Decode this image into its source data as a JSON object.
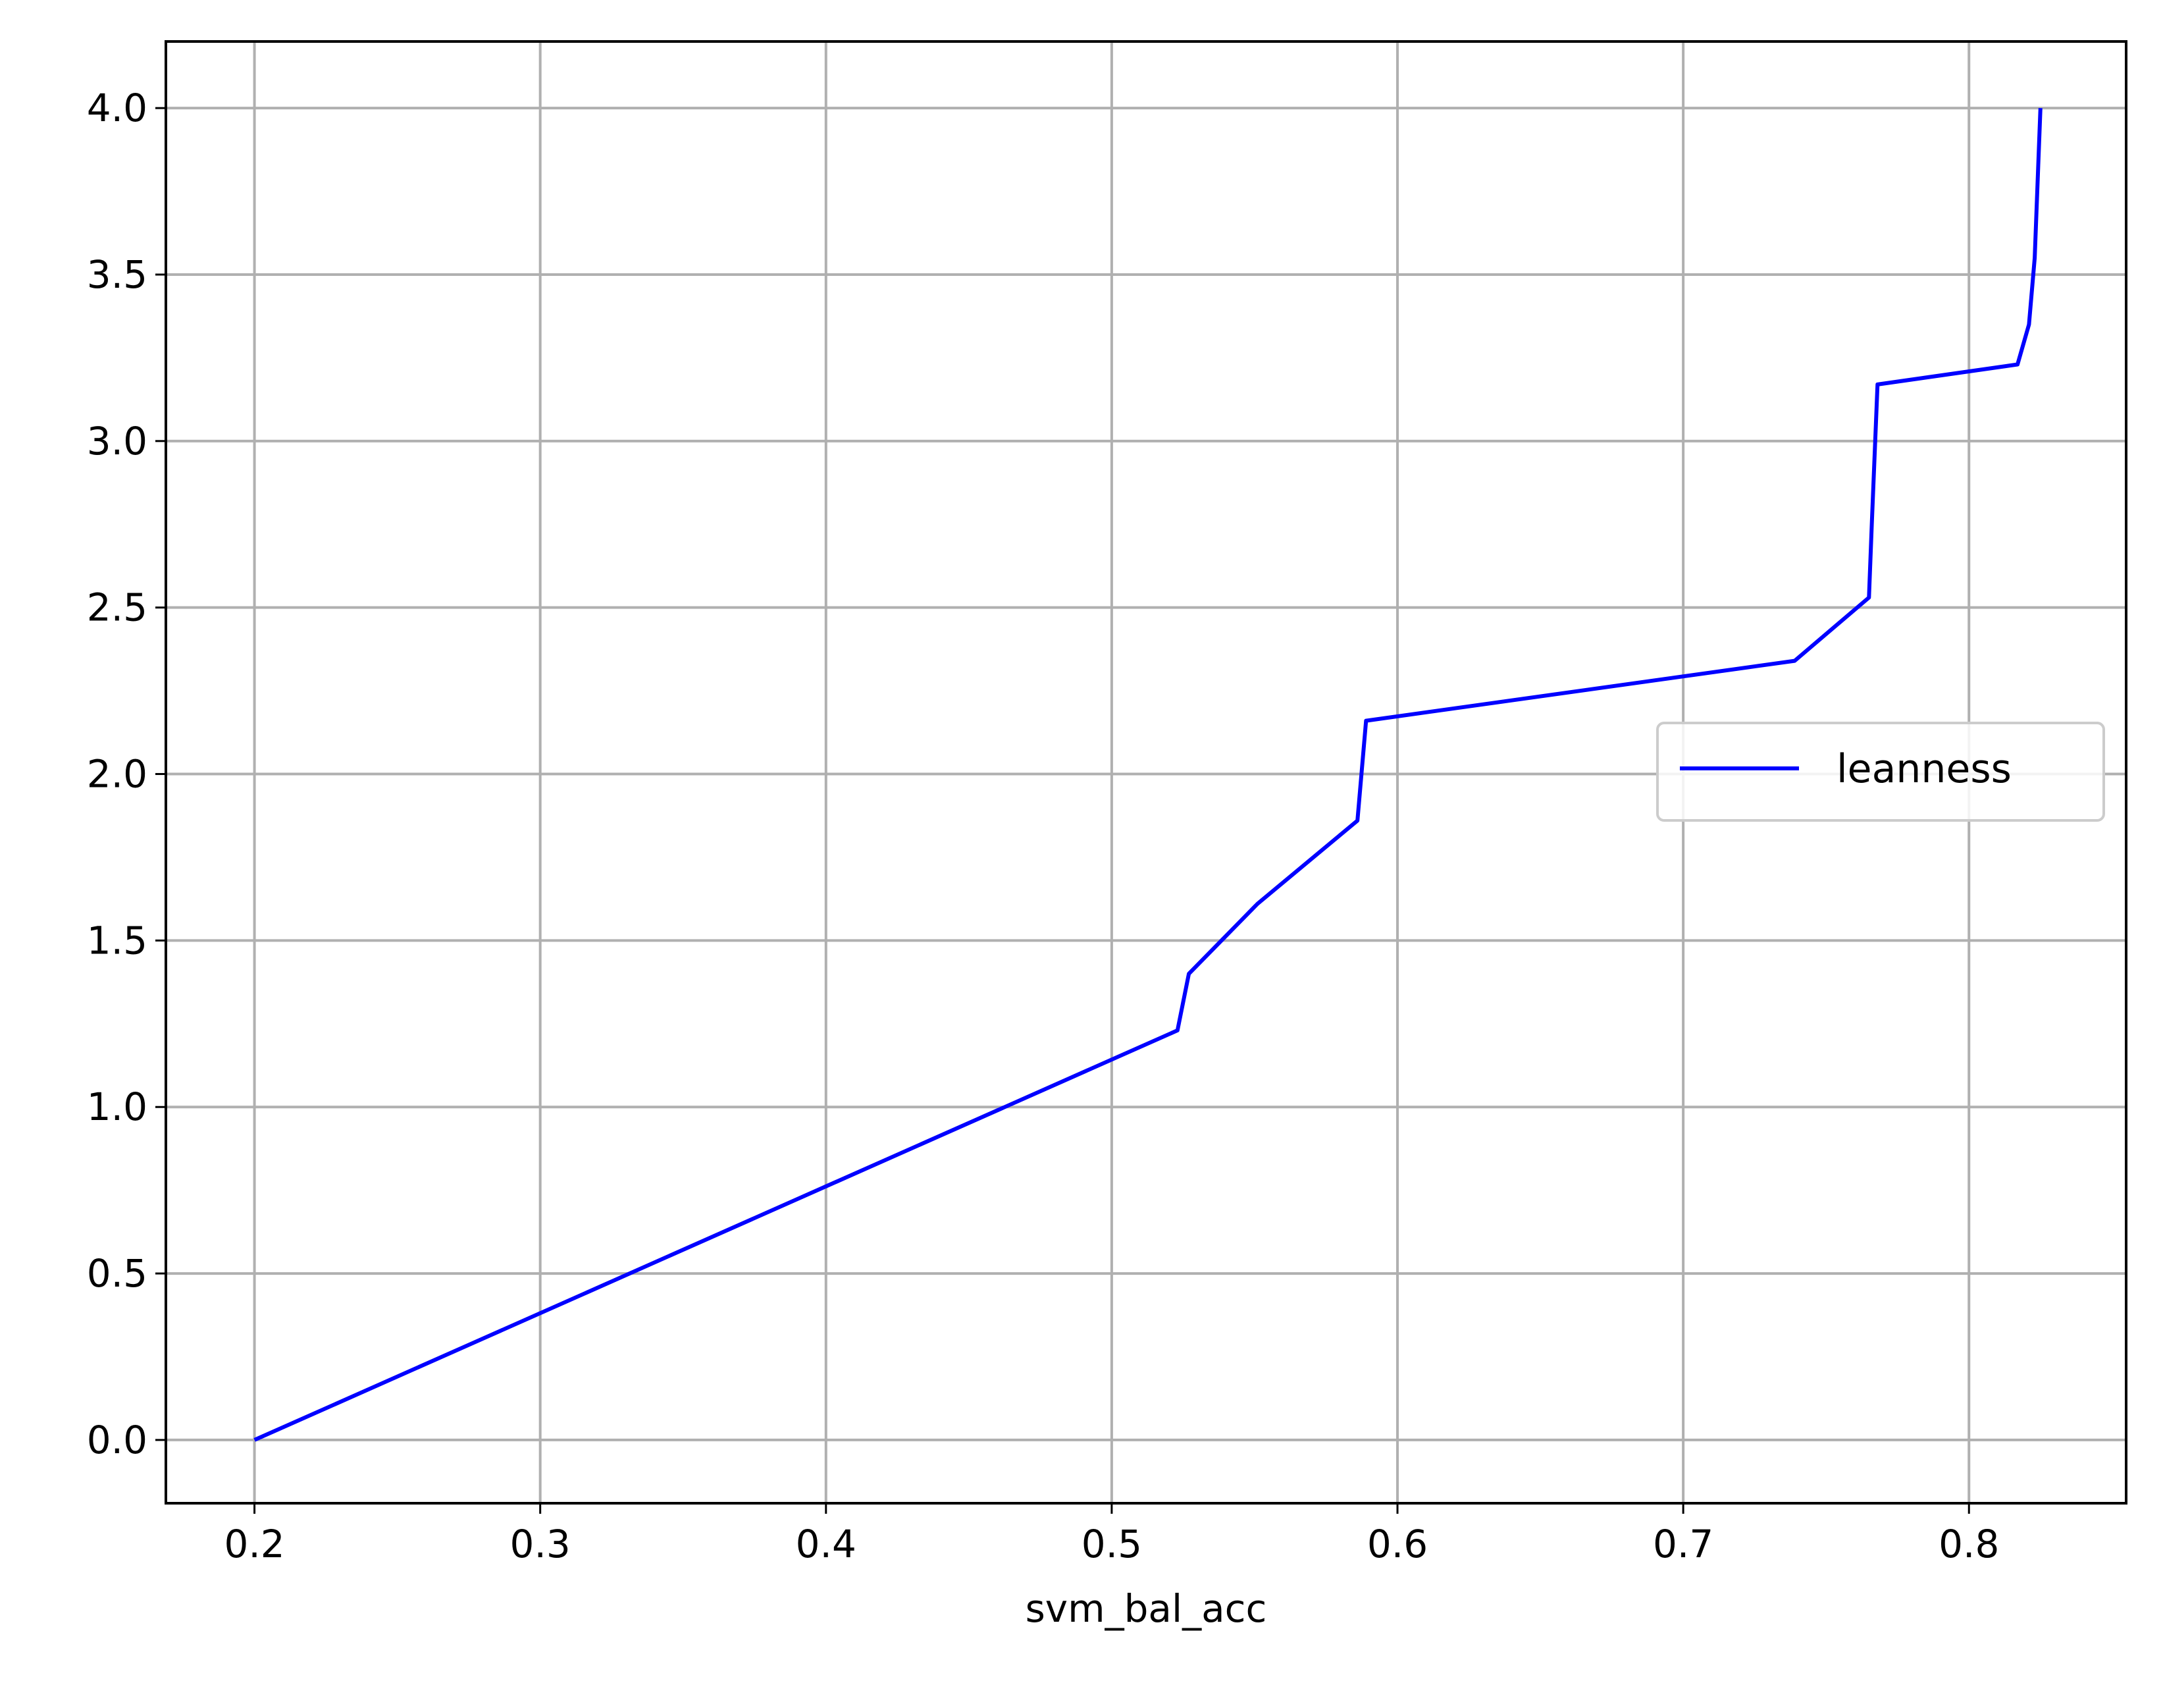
{
  "chart_data": {
    "type": "line",
    "title": "",
    "xlabel": "svm_bal_acc",
    "ylabel": "",
    "xlim": [
      0.169,
      0.855
    ],
    "ylim": [
      -0.19,
      4.2
    ],
    "xticks": [
      0.2,
      0.3,
      0.4,
      0.5,
      0.6,
      0.7,
      0.8
    ],
    "xtick_labels": [
      "0.2",
      "0.3",
      "0.4",
      "0.5",
      "0.6",
      "0.7",
      "0.8"
    ],
    "yticks": [
      0.0,
      0.5,
      1.0,
      1.5,
      2.0,
      2.5,
      3.0,
      3.5,
      4.0
    ],
    "ytick_labels": [
      "0.0",
      "0.5",
      "1.0",
      "1.5",
      "2.0",
      "2.5",
      "3.0",
      "3.5",
      "4.0"
    ],
    "grid": true,
    "legend_position": "center-right",
    "series": [
      {
        "name": "leanness",
        "color": "#0000ff",
        "x": [
          0.2,
          0.523,
          0.527,
          0.551,
          0.586,
          0.589,
          0.739,
          0.765,
          0.766,
          0.768,
          0.817,
          0.821,
          0.823,
          0.825
        ],
        "y": [
          0.0,
          1.23,
          1.4,
          1.61,
          1.86,
          2.16,
          2.34,
          2.53,
          2.75,
          3.17,
          3.23,
          3.35,
          3.55,
          4.0
        ]
      }
    ]
  }
}
